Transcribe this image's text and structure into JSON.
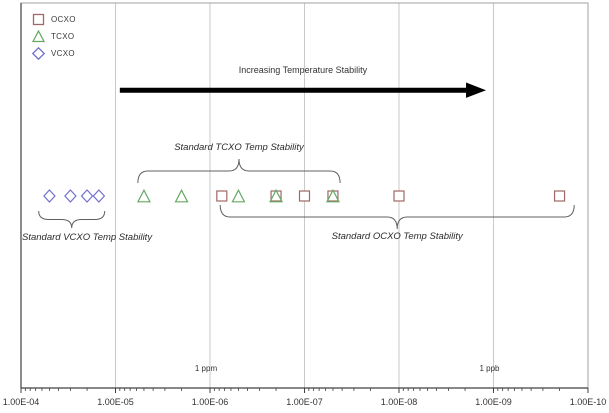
{
  "chart_data": {
    "type": "scatter",
    "title": "",
    "x_axis": {
      "scale": "log",
      "direction": "decreasing-to-right",
      "min": 0.0001,
      "max": 1e-10,
      "ticks": [
        {
          "label": "1.00E-04",
          "value": 0.0001
        },
        {
          "label": "1.00E-05",
          "value": 1e-05
        },
        {
          "label": "1.00E-06",
          "value": 1e-06
        },
        {
          "label": "1.00E-07",
          "value": 1e-07
        },
        {
          "label": "1.00E-08",
          "value": 1e-08
        },
        {
          "label": "1.00E-09",
          "value": 1e-09
        },
        {
          "label": "1.00E-10",
          "value": 1e-10
        }
      ],
      "minor_ticks": "logarithmic",
      "gridlines": true
    },
    "y_axis": {
      "visible": false
    },
    "series": [
      {
        "name": "OCXO",
        "marker": "square",
        "color": "#a06868",
        "values": [
          7.5e-07,
          2e-07,
          1e-07,
          5e-08,
          1e-08,
          2e-10
        ]
      },
      {
        "name": "TCXO",
        "marker": "triangle",
        "color": "#66aa66",
        "values": [
          5e-06,
          2e-06,
          5e-07,
          2e-07,
          5e-08
        ]
      },
      {
        "name": "VCXO",
        "marker": "diamond",
        "color": "#7070cc",
        "values": [
          5e-05,
          3e-05,
          2e-05,
          1.5e-05
        ]
      }
    ],
    "legend": {
      "position": "top-left",
      "order": [
        "OCXO",
        "TCXO",
        "VCXO"
      ]
    },
    "annotations": {
      "arrow": {
        "label": "Increasing Temperature Stability",
        "from": 9e-06,
        "to": 1.2e-09,
        "color": "#000000"
      },
      "braces": [
        {
          "label": "Standard VCXO Temp Stability",
          "from": 6.5e-05,
          "to": 1.3e-05,
          "side": "below"
        },
        {
          "label": "Standard TCXO Temp Stability",
          "from": 5.8e-06,
          "to": 4.2e-08,
          "side": "above"
        },
        {
          "label": "Standard OCXO Temp Stability",
          "from": 7.8e-07,
          "to": 1.4e-10,
          "side": "below"
        }
      ],
      "scale_labels": [
        {
          "text": "1 ppm",
          "at": 1e-06
        },
        {
          "text": "1 ppb",
          "at": 1e-09
        }
      ]
    },
    "colors": {
      "gridline": "#c9c9c9",
      "axis": "#404040",
      "border": "#a0a0a0",
      "brace": "#606060",
      "marker_fill": "#ffffff"
    }
  }
}
